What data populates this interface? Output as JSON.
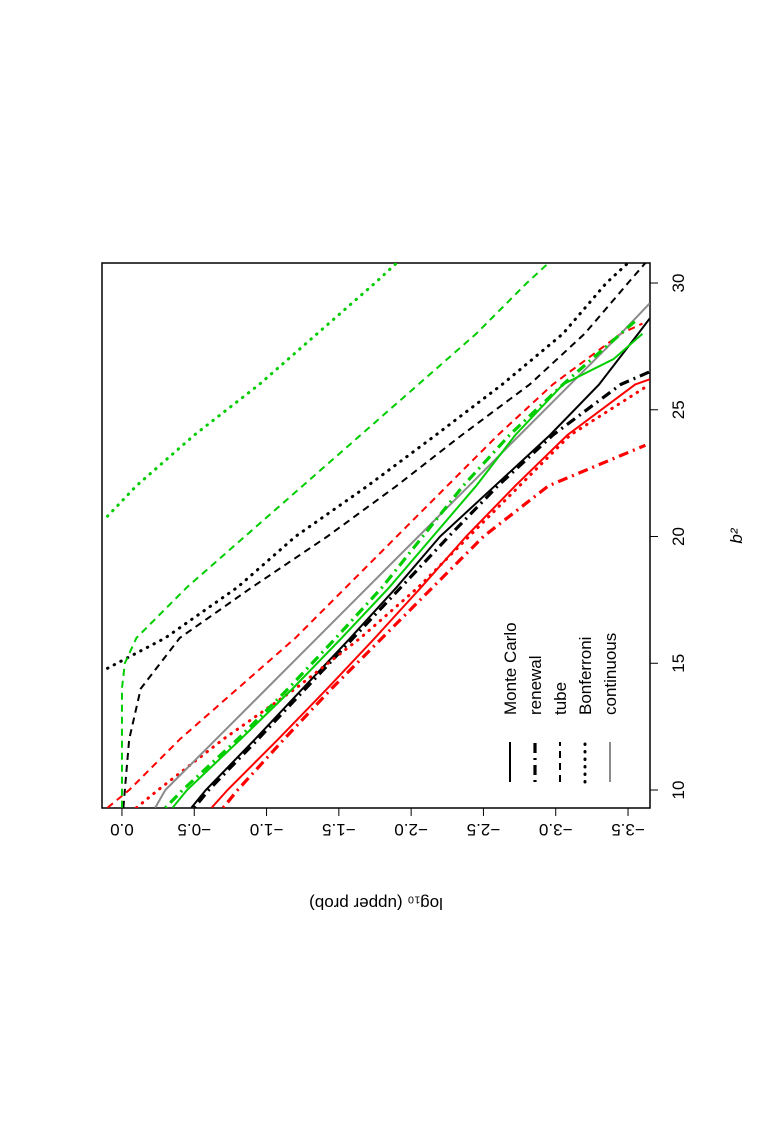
{
  "chart_data": {
    "type": "line",
    "xlabel": "b²",
    "ylabel": "log₁₀ (upper prob)",
    "xlim": [
      9.29,
      30.79
    ],
    "ylim": [
      -3.652,
      0.138
    ],
    "xticks": [
      10,
      15,
      20,
      25,
      30
    ],
    "yticks": [
      {
        "value": 0,
        "label": "0.0"
      },
      {
        "value": -0.5,
        "label": "−0.5"
      },
      {
        "value": -1,
        "label": "−1.0"
      },
      {
        "value": -1.5,
        "label": "−1.5"
      },
      {
        "value": -2,
        "label": "−2.0"
      },
      {
        "value": -2.5,
        "label": "−2.5"
      },
      {
        "value": -3,
        "label": "−3.0"
      },
      {
        "value": -3.5,
        "label": "−3.5"
      }
    ],
    "legend": [
      {
        "label": "Monte Carlo",
        "dash": "solid",
        "color": "#000000"
      },
      {
        "label": "renewal",
        "dash": "dotdash",
        "color": "#000000"
      },
      {
        "label": "tube",
        "dash": "dashed",
        "color": "#000000"
      },
      {
        "label": "Bonferroni",
        "dash": "dotted",
        "color": "#000000"
      },
      {
        "label": "continuous",
        "dash": "solid",
        "color": "#8c8c8c"
      }
    ],
    "series": [
      {
        "color": "#000000",
        "dash": "solid",
        "x": [
          9.3,
          10,
          12,
          14,
          16,
          18,
          20,
          22,
          24,
          26,
          28,
          28.6
        ],
        "values": [
          -0.48,
          -0.58,
          -0.92,
          -1.25,
          -1.58,
          -1.9,
          -2.2,
          -2.58,
          -2.96,
          -3.3,
          -3.57,
          -3.65
        ]
      },
      {
        "color": "#000000",
        "dash": "dotdash",
        "x": [
          9.3,
          10,
          12,
          14,
          16,
          18,
          20,
          22,
          24,
          26,
          26.5
        ],
        "values": [
          -0.5,
          -0.6,
          -0.94,
          -1.27,
          -1.6,
          -1.93,
          -2.26,
          -2.6,
          -2.98,
          -3.45,
          -3.65
        ]
      },
      {
        "color": "#000000",
        "dash": "dashed",
        "x": [
          9.3,
          10,
          12,
          14,
          16,
          18,
          20,
          22,
          24,
          26,
          28,
          30,
          30.79
        ],
        "values": [
          -0.01,
          -0.02,
          -0.05,
          -0.13,
          -0.4,
          -0.9,
          -1.42,
          -1.9,
          -2.35,
          -2.82,
          -3.2,
          -3.5,
          -3.62
        ]
      },
      {
        "color": "#000000",
        "dash": "dotted",
        "x": [
          14.8,
          16,
          18,
          20,
          22,
          24,
          26,
          28,
          30,
          30.79
        ],
        "values": [
          0.1,
          -0.3,
          -0.8,
          -1.2,
          -1.7,
          -2.17,
          -2.63,
          -3.05,
          -3.35,
          -3.5
        ]
      },
      {
        "color": "#ff0000",
        "dash": "solid",
        "x": [
          9.3,
          10,
          12,
          14,
          16,
          18,
          20,
          22,
          24,
          26,
          26.2
        ],
        "values": [
          -0.62,
          -0.73,
          -1.08,
          -1.42,
          -1.75,
          -2.07,
          -2.38,
          -2.72,
          -3.08,
          -3.55,
          -3.65
        ]
      },
      {
        "color": "#ff0000",
        "dash": "dotdash",
        "x": [
          9.3,
          10,
          12,
          14,
          16,
          18,
          20,
          22,
          23.6
        ],
        "values": [
          -0.7,
          -0.8,
          -1.12,
          -1.45,
          -1.8,
          -2.15,
          -2.5,
          -2.95,
          -3.62
        ]
      },
      {
        "color": "#ff0000",
        "dash": "dashed",
        "x": [
          9.3,
          10,
          12,
          14,
          16,
          18,
          20,
          22,
          24,
          26,
          28,
          28.4
        ],
        "values": [
          0.1,
          -0.05,
          -0.4,
          -0.8,
          -1.2,
          -1.55,
          -1.9,
          -2.25,
          -2.6,
          -2.98,
          -3.45,
          -3.6
        ]
      },
      {
        "color": "#ff0000",
        "dash": "dotted",
        "x": [
          9.3,
          10,
          12,
          14,
          16,
          18,
          20,
          22,
          24,
          26
        ],
        "values": [
          -0.1,
          -0.25,
          -0.7,
          -1.2,
          -1.65,
          -2.05,
          -2.4,
          -2.75,
          -3.1,
          -3.65
        ]
      },
      {
        "color": "#8c8c8c",
        "dash": "solid",
        "x": [
          9.3,
          10,
          12,
          14,
          16,
          18,
          20,
          22,
          24,
          26,
          28,
          29.2
        ],
        "values": [
          -0.23,
          -0.3,
          -0.65,
          -1.0,
          -1.35,
          -1.7,
          -2.05,
          -2.4,
          -2.75,
          -3.1,
          -3.45,
          -3.65
        ]
      },
      {
        "color": "#00cd00",
        "dash": "solid",
        "x": [
          9.3,
          10,
          12,
          14,
          16,
          18,
          20,
          22,
          24,
          26,
          27,
          28
        ],
        "values": [
          -0.35,
          -0.45,
          -0.82,
          -1.18,
          -1.52,
          -1.85,
          -2.15,
          -2.45,
          -2.72,
          -3.05,
          -3.4,
          -3.6
        ]
      },
      {
        "color": "#00cd00",
        "dash": "dotdash",
        "x": [
          9.3,
          10,
          12,
          14,
          16,
          18,
          20,
          22,
          24,
          26,
          28,
          28.5
        ],
        "values": [
          -0.3,
          -0.42,
          -0.8,
          -1.15,
          -1.48,
          -1.8,
          -2.08,
          -2.36,
          -2.68,
          -3.05,
          -3.45,
          -3.55
        ]
      },
      {
        "color": "#00cd00",
        "dash": "dashed",
        "x": [
          9.3,
          14,
          15,
          16,
          18,
          20,
          22,
          24,
          26,
          28,
          30,
          30.79
        ],
        "values": [
          0.0,
          0.0,
          -0.02,
          -0.1,
          -0.45,
          -0.85,
          -1.25,
          -1.65,
          -2.05,
          -2.45,
          -2.8,
          -2.95
        ]
      },
      {
        "color": "#00cd00",
        "dash": "dotted",
        "x": [
          20.8,
          22,
          24,
          26,
          28,
          30,
          30.79
        ],
        "values": [
          0.1,
          -0.1,
          -0.5,
          -0.95,
          -1.35,
          -1.75,
          -1.9
        ]
      }
    ]
  }
}
